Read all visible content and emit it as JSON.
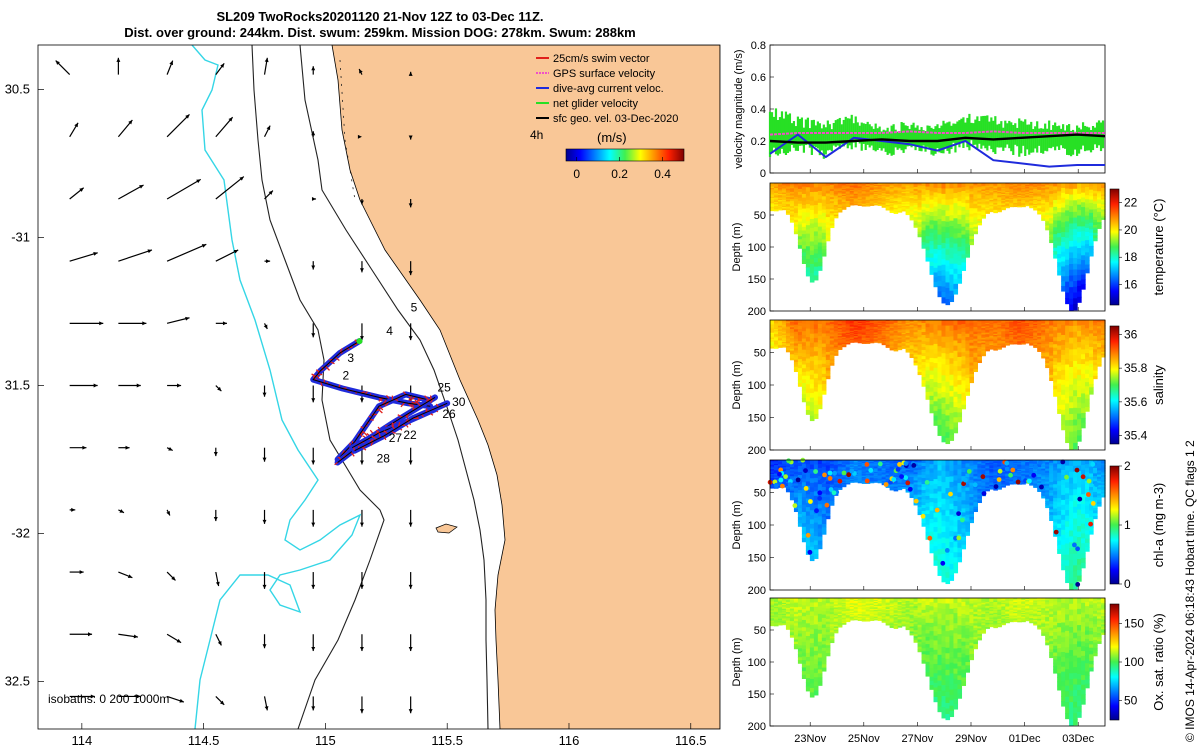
{
  "header": {
    "title_line1": "SL209 TwoRocks20201120 21-Nov 12Z to 03-Dec 11Z.",
    "title_line2": "Dist. over ground: 244km. Dist. swum: 259km. Mission DOG: 278km. Swum: 288km"
  },
  "credit": "© IMOS 14-Apr-2024 06:18:43 Hobart time. QC flags 1 2",
  "colors": {
    "land": "#f9c797",
    "isobath_shallow": "#222222",
    "isobath_deep": "#35d6e6",
    "track": "#1f2bdc",
    "swim": "#e0201b",
    "net": "#27e024",
    "gps": "#f050c8",
    "current": "#000000"
  },
  "chart_data": [
    {
      "type": "scatter",
      "name": "map",
      "xlim": [
        113.82,
        116.62
      ],
      "ylim": [
        -32.66,
        -30.35
      ],
      "x_ticks": [
        114,
        114.5,
        115,
        115.5,
        116,
        116.5
      ],
      "x_tick_labels": [
        "114",
        "114.5",
        "115",
        "115.5",
        "116",
        "116.5"
      ],
      "y_ticks": [
        -30.5,
        -31,
        -31.5,
        -32,
        -32.5
      ],
      "y_tick_labels": [
        "30.5",
        "-31",
        "31.5",
        "-32",
        "32.5"
      ],
      "legend": [
        {
          "label": "25cm/s swim vector",
          "color": "#e0201b"
        },
        {
          "label": "GPS surface velocity",
          "color": "#f050c8"
        },
        {
          "label": "dive-avg current veloc.",
          "color": "#1f2bdc"
        },
        {
          "label": "net glider velocity",
          "color": "#27e024"
        },
        {
          "label": "sfc geo. vel. 03-Dec-2020",
          "color": "#000000"
        }
      ],
      "legend_position": "top-right",
      "speed_label": "4h",
      "speed_colorbar_title": "(m/s)",
      "speed_colorbar_ticks": [
        "0",
        "0.2",
        "0.4"
      ],
      "speed_colorbar_range": [
        -0.05,
        0.5
      ],
      "isobath_note": "isobaths: 0   200  1000m",
      "waypoints": [
        {
          "label": "2",
          "x": 115.07,
          "y": -31.48
        },
        {
          "label": "3",
          "x": 115.09,
          "y": -31.42
        },
        {
          "label": "4",
          "x": 115.25,
          "y": -31.33
        },
        {
          "label": "5",
          "x": 115.35,
          "y": -31.25
        },
        {
          "label": "25",
          "x": 115.46,
          "y": -31.52
        },
        {
          "label": "30",
          "x": 115.52,
          "y": -31.57
        },
        {
          "label": "26",
          "x": 115.48,
          "y": -31.61
        },
        {
          "label": "27",
          "x": 115.26,
          "y": -31.69
        },
        {
          "label": "22",
          "x": 115.32,
          "y": -31.68
        },
        {
          "label": "28",
          "x": 115.21,
          "y": -31.76
        }
      ],
      "track_segments": [
        [
          [
            115.14,
            -31.35
          ],
          [
            115.06,
            -31.39
          ],
          [
            114.98,
            -31.45
          ],
          [
            114.95,
            -31.48
          ],
          [
            115.07,
            -31.51
          ],
          [
            115.22,
            -31.54
          ],
          [
            115.34,
            -31.56
          ],
          [
            115.43,
            -31.57
          ]
        ],
        [
          [
            115.43,
            -31.55
          ],
          [
            115.33,
            -31.53
          ],
          [
            115.22,
            -31.57
          ],
          [
            115.17,
            -31.63
          ],
          [
            115.12,
            -31.69
          ],
          [
            115.05,
            -31.75
          ]
        ],
        [
          [
            115.05,
            -31.76
          ],
          [
            115.16,
            -31.69
          ],
          [
            115.27,
            -31.63
          ],
          [
            115.39,
            -31.57
          ],
          [
            115.45,
            -31.54
          ]
        ],
        [
          [
            115.45,
            -31.58
          ],
          [
            115.34,
            -31.62
          ],
          [
            115.22,
            -31.66
          ],
          [
            115.11,
            -31.71
          ]
        ],
        [
          [
            115.12,
            -31.72
          ],
          [
            115.24,
            -31.67
          ],
          [
            115.36,
            -31.61
          ],
          [
            115.5,
            -31.56
          ]
        ]
      ],
      "current_vectors_note": "sfc geo. vel. arrows, u/v in m/s",
      "current_lons": [
        113.95,
        114.15,
        114.35,
        114.55,
        114.75,
        114.95,
        115.15,
        115.35
      ],
      "current_lats": [
        -30.45,
        -30.66,
        -30.87,
        -31.08,
        -31.29,
        -31.5,
        -31.71,
        -31.92,
        -32.13,
        -32.34,
        -32.55
      ],
      "current_u": [
        [
          -0.05,
          0.0,
          0.02,
          0.03,
          0.01,
          0.0,
          -0.01,
          0.0
        ],
        [
          0.03,
          0.05,
          0.08,
          0.06,
          0.02,
          0.0,
          0.0,
          0.0
        ],
        [
          0.05,
          0.09,
          0.12,
          0.1,
          0.03,
          0.01,
          0.0,
          0.0
        ],
        [
          0.1,
          0.12,
          0.14,
          0.08,
          0.02,
          0.0,
          0.0,
          0.0
        ],
        [
          0.12,
          0.1,
          0.08,
          0.04,
          0.01,
          0.0,
          0.0,
          0.0
        ],
        [
          0.1,
          0.08,
          0.05,
          0.02,
          0.0,
          0.0,
          0.0,
          0.0
        ],
        [
          0.06,
          0.04,
          0.02,
          0.0,
          0.0,
          0.0,
          0.0,
          0.0
        ],
        [
          0.02,
          0.02,
          0.01,
          0.0,
          0.0,
          0.0,
          0.0,
          0.0
        ],
        [
          0.05,
          0.05,
          0.03,
          0.01,
          0.0,
          0.0,
          0.0,
          0.0
        ],
        [
          0.08,
          0.07,
          0.05,
          0.02,
          0.0,
          0.0,
          0.0,
          0.0
        ],
        [
          0.09,
          0.08,
          0.06,
          0.03,
          0.01,
          0.0,
          0.0,
          0.0
        ]
      ],
      "current_v": [
        [
          0.05,
          0.06,
          0.05,
          0.04,
          0.06,
          0.03,
          0.02,
          0.01
        ],
        [
          0.05,
          0.06,
          0.08,
          0.07,
          0.04,
          0.02,
          0.0,
          -0.01
        ],
        [
          0.04,
          0.05,
          0.07,
          0.08,
          0.03,
          0.0,
          -0.02,
          -0.03
        ],
        [
          0.03,
          0.04,
          0.06,
          0.04,
          0.0,
          -0.03,
          -0.04,
          -0.05
        ],
        [
          0.0,
          0.0,
          0.02,
          0.0,
          -0.02,
          -0.05,
          -0.06,
          -0.06
        ],
        [
          0.0,
          0.0,
          0.0,
          -0.02,
          -0.04,
          -0.06,
          -0.06,
          -0.06
        ],
        [
          0.0,
          0.0,
          -0.01,
          -0.03,
          -0.05,
          -0.06,
          -0.06,
          -0.06
        ],
        [
          0.0,
          -0.01,
          -0.02,
          -0.04,
          -0.05,
          -0.06,
          -0.06,
          -0.06
        ],
        [
          0.0,
          -0.02,
          -0.03,
          -0.05,
          -0.06,
          -0.06,
          -0.06,
          -0.06
        ],
        [
          0.0,
          -0.01,
          -0.03,
          -0.04,
          -0.05,
          -0.06,
          -0.06,
          -0.06
        ],
        [
          0.0,
          0.0,
          -0.02,
          -0.03,
          -0.05,
          -0.05,
          -0.06,
          -0.06
        ]
      ]
    },
    {
      "type": "line",
      "name": "velocity",
      "ylabel": "velocity magnitude (m/s)",
      "ylim": [
        0,
        0.8
      ],
      "y_ticks": [
        0,
        0.2,
        0.4,
        0.6,
        0.8
      ],
      "xlim": [
        0,
        12.5
      ],
      "series": [
        {
          "color": "#27e024",
          "kind": "band",
          "lo": [
            0.1,
            0.12,
            0.08,
            0.15,
            0.1,
            0.12,
            0.1,
            0.14,
            0.12,
            0.1,
            0.12,
            0.1,
            0.13
          ],
          "hi": [
            0.42,
            0.36,
            0.34,
            0.37,
            0.3,
            0.33,
            0.32,
            0.38,
            0.36,
            0.34,
            0.33,
            0.32,
            0.34
          ]
        },
        {
          "color": "#f050c8",
          "kind": "line",
          "y": [
            0.24,
            0.25,
            0.25,
            0.25,
            0.25,
            0.26,
            0.25,
            0.25,
            0.26,
            0.25,
            0.25,
            0.25,
            0.25
          ]
        },
        {
          "color": "#1f2bdc",
          "kind": "line",
          "y": [
            0.12,
            0.24,
            0.1,
            0.22,
            0.2,
            0.18,
            0.14,
            0.2,
            0.08,
            0.06,
            0.04,
            0.05,
            0.05
          ]
        },
        {
          "color": "#000000",
          "kind": "line",
          "y": [
            0.2,
            0.19,
            0.19,
            0.2,
            0.21,
            0.2,
            0.2,
            0.22,
            0.21,
            0.22,
            0.23,
            0.24,
            0.23
          ]
        }
      ]
    },
    {
      "type": "heatmap",
      "name": "temperature",
      "ylabel": "Depth (m)",
      "ylim": [
        0,
        200
      ],
      "y_ticks": [
        50,
        100,
        150,
        200
      ],
      "colorbar_label": "temperature (°C)",
      "colorbar_range": [
        14.5,
        23
      ],
      "colorbar_ticks": [
        16,
        18,
        20,
        22
      ],
      "dives": [
        {
          "center": 1.6,
          "depth": 155,
          "halfwidth": 0.8
        },
        {
          "center": 6.6,
          "depth": 190,
          "halfwidth": 1.2
        },
        {
          "center": 11.3,
          "depth": 200,
          "halfwidth": 1.0
        }
      ],
      "top": [
        20.8,
        21.2,
        21.0,
        21.3,
        20.9,
        20.8,
        21.1,
        21.0,
        20.9,
        21.1,
        21.0,
        20.8,
        21.0
      ],
      "bottom": [
        17.5,
        17.8,
        18.0,
        18.4,
        18.2,
        17.2,
        16.6,
        17.2,
        18.0,
        18.1,
        17.0,
        15.6,
        15.2
      ]
    },
    {
      "type": "heatmap",
      "name": "salinity",
      "ylabel": "Depth (m)",
      "ylim": [
        0,
        200
      ],
      "y_ticks": [
        50,
        100,
        150,
        200
      ],
      "colorbar_label": "salinity",
      "colorbar_range": [
        35.35,
        36.05
      ],
      "colorbar_ticks": [
        35.4,
        35.6,
        35.8,
        36
      ],
      "dives": [
        {
          "center": 1.6,
          "depth": 155,
          "halfwidth": 0.8
        },
        {
          "center": 6.6,
          "depth": 190,
          "halfwidth": 1.2
        },
        {
          "center": 11.3,
          "depth": 200,
          "halfwidth": 1.0
        }
      ],
      "top": [
        35.82,
        35.92,
        35.9,
        35.95,
        35.92,
        35.88,
        35.9,
        35.92,
        35.9,
        35.93,
        35.9,
        35.88,
        35.9
      ],
      "bottom": [
        35.7,
        35.72,
        35.78,
        35.82,
        35.8,
        35.72,
        35.7,
        35.75,
        35.8,
        35.82,
        35.78,
        35.72,
        35.7
      ]
    },
    {
      "type": "heatmap",
      "name": "chl-a",
      "ylabel": "Depth (m)",
      "ylim": [
        0,
        200
      ],
      "y_ticks": [
        50,
        100,
        150,
        200
      ],
      "colorbar_label": "chl-a (mg m-3)",
      "colorbar_range": [
        0,
        2
      ],
      "colorbar_ticks": [
        0,
        1,
        2
      ],
      "dives": [
        {
          "center": 1.6,
          "depth": 155,
          "halfwidth": 0.8
        },
        {
          "center": 6.6,
          "depth": 190,
          "halfwidth": 1.2
        },
        {
          "center": 11.3,
          "depth": 200,
          "halfwidth": 1.0
        }
      ],
      "top": [
        0.3,
        0.4,
        0.35,
        0.5,
        0.45,
        0.4,
        0.6,
        0.5,
        0.4,
        0.45,
        0.5,
        0.6,
        0.5
      ],
      "bottom": [
        0.6,
        0.7,
        0.6,
        0.5,
        0.55,
        0.9,
        0.8,
        0.7,
        0.55,
        0.5,
        0.7,
        0.9,
        0.8
      ]
    },
    {
      "type": "heatmap",
      "name": "oxygen",
      "ylabel": "Depth (m)",
      "ylim": [
        0,
        200
      ],
      "y_ticks": [
        50,
        100,
        150,
        200
      ],
      "colorbar_label": "Ox. sat. ratio (%)",
      "colorbar_range": [
        25,
        175
      ],
      "colorbar_ticks": [
        50,
        100,
        150
      ],
      "dives": [
        {
          "center": 1.6,
          "depth": 155,
          "halfwidth": 0.8
        },
        {
          "center": 6.6,
          "depth": 190,
          "halfwidth": 1.2
        },
        {
          "center": 11.3,
          "depth": 200,
          "halfwidth": 1.0
        }
      ],
      "top": [
        110,
        115,
        112,
        118,
        116,
        112,
        115,
        114,
        112,
        116,
        114,
        112,
        115
      ],
      "bottom": [
        98,
        100,
        102,
        104,
        102,
        96,
        95,
        98,
        102,
        103,
        100,
        96,
        95
      ]
    }
  ],
  "time_axis": {
    "ticks": [
      1.5,
      3.5,
      5.5,
      7.5,
      9.5,
      11.5
    ],
    "labels": [
      "23Nov",
      "25Nov",
      "27Nov",
      "29Nov",
      "01Dec",
      "03Dec"
    ]
  }
}
